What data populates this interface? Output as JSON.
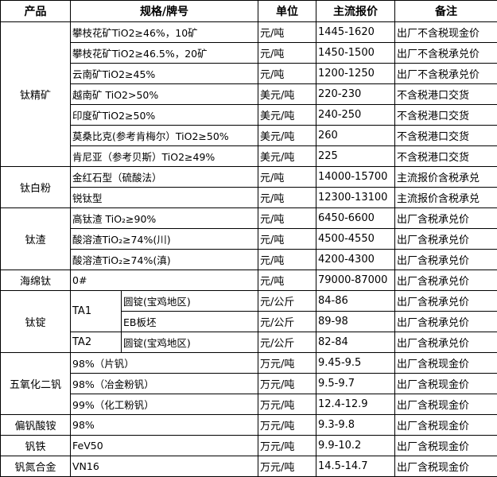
{
  "header": {
    "product": "产品",
    "spec": "规格/牌号",
    "unit": "单位",
    "price": "主流报价",
    "note": "备注"
  },
  "groups": [
    {
      "product": "钛精矿",
      "rows": [
        {
          "spec": "攀枝花矿TiO2≥46%，10矿",
          "unit": "元/吨",
          "price": "1445-1620",
          "note": "出厂不含税现金价"
        },
        {
          "spec": "攀枝花矿TiO2≥46.5%，20矿",
          "unit": "元/吨",
          "price": "1450-1500",
          "note": "出厂不含税承兑价"
        },
        {
          "spec": "云南矿TiO2≥45%",
          "unit": "元/吨",
          "price": "1200-1250",
          "note": "出厂不含税承兑价"
        },
        {
          "spec": "越南矿 TiO2>50%",
          "unit": "美元/吨",
          "price": "220-230",
          "note": "不含税港口交货"
        },
        {
          "spec": "印度矿TiO2≥50%",
          "unit": "美元/吨",
          "price": "240-250",
          "note": "不含税港口交货"
        },
        {
          "spec": "莫桑比克(参考肯梅尔）TiO2≥50%",
          "unit": "美元/吨",
          "price": "260",
          "note": "不含税港口交货"
        },
        {
          "spec": "肯尼亚（参考贝斯）TiO2≥49%",
          "unit": "美元/吨",
          "price": "225",
          "note": "不含税港口交货"
        }
      ]
    },
    {
      "product": "钛白粉",
      "rows": [
        {
          "spec": "金红石型（硫酸法）",
          "unit": "元/吨",
          "price": "14000-15700",
          "note": "主流报价含税承兑"
        },
        {
          "spec": "锐钛型",
          "unit": "元/吨",
          "price": "12300-13100",
          "note": "主流报价含税承兑"
        }
      ]
    },
    {
      "product": "钛渣",
      "rows": [
        {
          "spec": "高钛渣 TiO₂≥90%",
          "unit": "元/吨",
          "price": "6450-6600",
          "note": "出厂含税承兑价"
        },
        {
          "spec": "酸溶渣TiO₂≥74%(川)",
          "unit": "元/吨",
          "price": "4500-4550",
          "note": "出厂含税承兑价"
        },
        {
          "spec": "酸溶渣TiO₂≥74%(滇)",
          "unit": "元/吨",
          "price": "4200-4300",
          "note": "出厂含税承兑价"
        }
      ]
    },
    {
      "product": "海绵钛",
      "rows": [
        {
          "spec": "0#",
          "unit": "元/吨",
          "price": "79000-87000",
          "note": "出厂含税承兑价"
        }
      ]
    },
    {
      "product": "钛锭",
      "rows": [
        {
          "grade": "TA1",
          "spec": "圆锭(宝鸡地区)",
          "unit": "元/公斤",
          "price": "84-86",
          "note": "出厂含税承兑价"
        },
        {
          "grade": "TA1",
          "spec": "EB板坯",
          "unit": "元/公斤",
          "price": "89-98",
          "note": "出厂含税承兑价"
        },
        {
          "grade": "TA2",
          "spec": "圆锭(宝鸡地区)",
          "unit": "元/公斤",
          "price": "82-84",
          "note": "出厂含税承兑价"
        }
      ]
    },
    {
      "product": "五氧化二钒",
      "rows": [
        {
          "spec": "98%（片钒）",
          "unit": "万元/吨",
          "price": "9.45-9.5",
          "note": "出厂含税现金价"
        },
        {
          "spec": "98%（冶金粉钒）",
          "unit": "万元/吨",
          "price": "9.5-9.7",
          "note": "出厂含税现金价"
        },
        {
          "spec": "99%（化工粉钒）",
          "unit": "万元/吨",
          "price": "12.4-12.9",
          "note": "出厂含税现金价"
        }
      ]
    },
    {
      "product": "偏钒酸铵",
      "rows": [
        {
          "spec": "98%",
          "unit": "万元/吨",
          "price": "9.3-9.8",
          "note": "出厂含税现金价"
        }
      ]
    },
    {
      "product": "钒铁",
      "rows": [
        {
          "spec": "FeV50",
          "unit": "万元/吨",
          "price": "9.9-10.2",
          "note": "出厂含税现金价"
        }
      ]
    },
    {
      "product": "钒氮合金",
      "rows": [
        {
          "spec": "VN16",
          "unit": "万元/吨",
          "price": "14.5-14.7",
          "note": "出厂含税现金价"
        }
      ]
    }
  ]
}
